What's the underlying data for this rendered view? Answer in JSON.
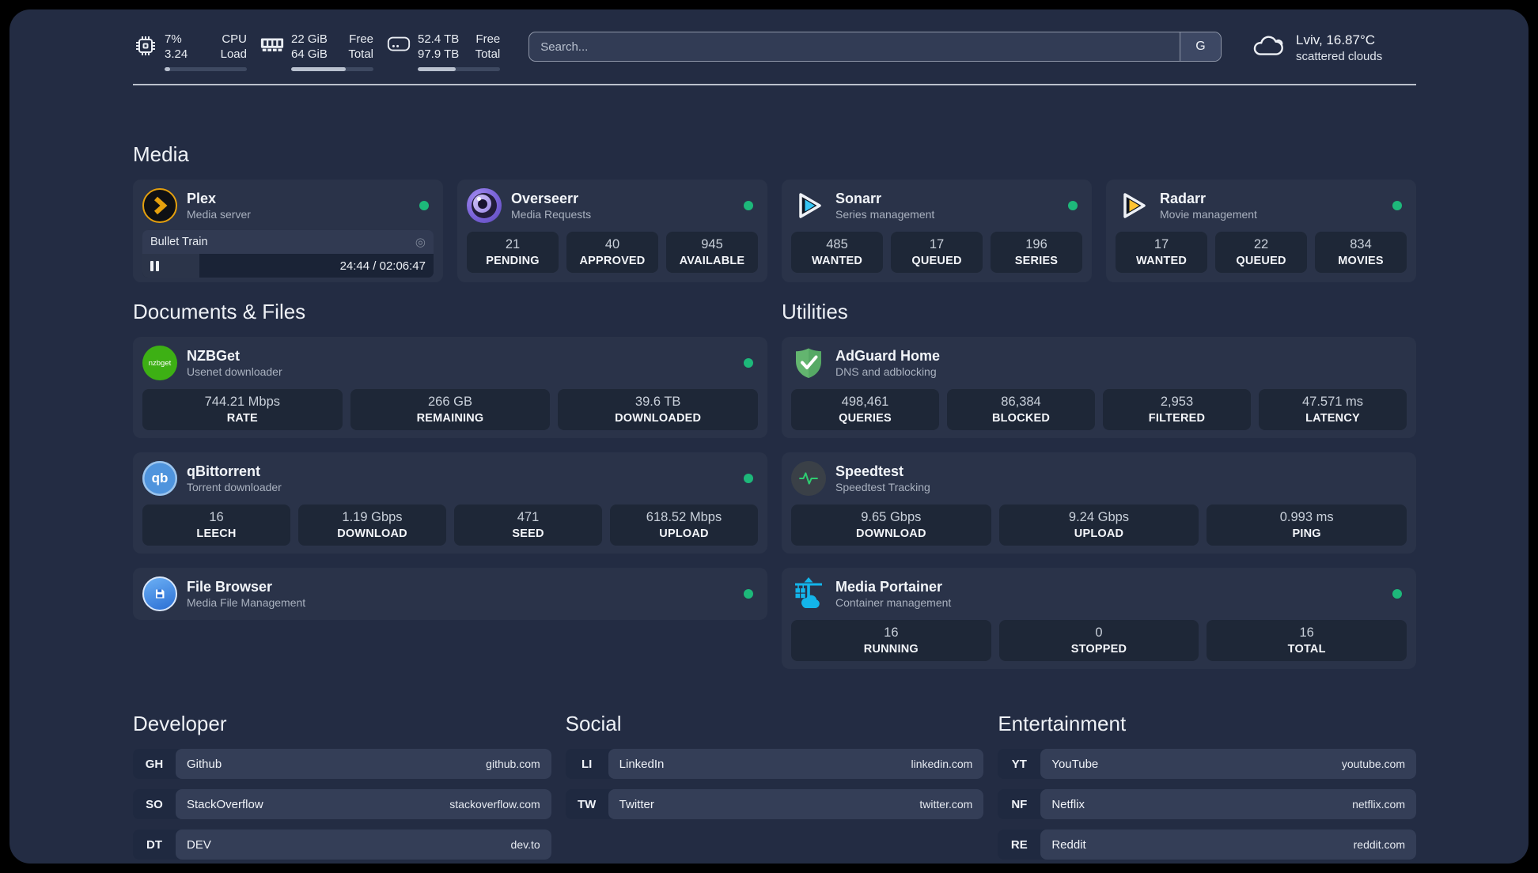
{
  "colors": {
    "panel": "#232c43",
    "card": "#2a3349",
    "tile": "#1e2737",
    "tag": "#1f2940",
    "rowbody": "#343e57",
    "online": "#1db87a",
    "divider": "#ccd2dc",
    "plex": "#e5a00d",
    "sonarr": "#35c5f4",
    "radarr": "#ffc230",
    "nzbget": "#3db014",
    "qb": "#4f94dd",
    "filebrowser": "#2f7fe0",
    "adguard": "#63b56f",
    "speedtest": "#2ecc71",
    "portainer": "#13b5ea",
    "searchborder": "#8e96a8"
  },
  "header": {
    "stats": [
      {
        "top_value": "7%",
        "bottom_value": "3.24",
        "top_label": "CPU",
        "bottom_label": "Load",
        "progress": 7
      },
      {
        "top_value": "22 GiB",
        "bottom_value": "64 GiB",
        "top_label": "Free",
        "bottom_label": "Total",
        "progress": 66
      },
      {
        "top_value": "52.4 TB",
        "bottom_value": "97.9 TB",
        "top_label": "Free",
        "bottom_label": "Total",
        "progress": 46
      }
    ],
    "search": {
      "placeholder": "Search...",
      "engine_button": "G"
    },
    "weather": {
      "location": "Lviv, 16.87°C",
      "condition": "scattered clouds"
    }
  },
  "media": {
    "title": "Media",
    "plex": {
      "name": "Plex",
      "desc": "Media server",
      "player": {
        "title": "Bullet Train",
        "time": "24:44 / 02:06:47",
        "progress": 19.5
      }
    },
    "overseerr": {
      "name": "Overseerr",
      "desc": "Media Requests",
      "stats": [
        {
          "value": "21",
          "label": "PENDING"
        },
        {
          "value": "40",
          "label": "APPROVED"
        },
        {
          "value": "945",
          "label": "AVAILABLE"
        }
      ]
    },
    "sonarr": {
      "name": "Sonarr",
      "desc": "Series management",
      "stats": [
        {
          "value": "485",
          "label": "WANTED"
        },
        {
          "value": "17",
          "label": "QUEUED"
        },
        {
          "value": "196",
          "label": "SERIES"
        }
      ]
    },
    "radarr": {
      "name": "Radarr",
      "desc": "Movie management",
      "stats": [
        {
          "value": "17",
          "label": "WANTED"
        },
        {
          "value": "22",
          "label": "QUEUED"
        },
        {
          "value": "834",
          "label": "MOVIES"
        }
      ]
    }
  },
  "documents": {
    "title": "Documents & Files",
    "nzbget": {
      "name": "NZBGet",
      "desc": "Usenet downloader",
      "icon_text": "nzbget",
      "stats": [
        {
          "value": "744.21 Mbps",
          "label": "RATE"
        },
        {
          "value": "266 GB",
          "label": "REMAINING"
        },
        {
          "value": "39.6 TB",
          "label": "DOWNLOADED"
        }
      ]
    },
    "qbittorrent": {
      "name": "qBittorrent",
      "desc": "Torrent downloader",
      "icon_text": "qb",
      "stats": [
        {
          "value": "16",
          "label": "LEECH"
        },
        {
          "value": "1.19 Gbps",
          "label": "DOWNLOAD"
        },
        {
          "value": "471",
          "label": "SEED"
        },
        {
          "value": "618.52 Mbps",
          "label": "UPLOAD"
        }
      ]
    },
    "filebrowser": {
      "name": "File Browser",
      "desc": "Media File Management"
    }
  },
  "utilities": {
    "title": "Utilities",
    "adguard": {
      "name": "AdGuard Home",
      "desc": "DNS and adblocking",
      "stats": [
        {
          "value": "498,461",
          "label": "QUERIES"
        },
        {
          "value": "86,384",
          "label": "BLOCKED"
        },
        {
          "value": "2,953",
          "label": "FILTERED"
        },
        {
          "value": "47.571 ms",
          "label": "LATENCY"
        }
      ]
    },
    "speedtest": {
      "name": "Speedtest",
      "desc": "Speedtest Tracking",
      "stats": [
        {
          "value": "9.65 Gbps",
          "label": "DOWNLOAD"
        },
        {
          "value": "9.24 Gbps",
          "label": "UPLOAD"
        },
        {
          "value": "0.993 ms",
          "label": "PING"
        }
      ]
    },
    "portainer": {
      "name": "Media Portainer",
      "desc": "Container management",
      "stats": [
        {
          "value": "16",
          "label": "RUNNING"
        },
        {
          "value": "0",
          "label": "STOPPED"
        },
        {
          "value": "16",
          "label": "TOTAL"
        }
      ]
    }
  },
  "bookmarks": [
    {
      "title": "Developer",
      "items": [
        {
          "abbr": "GH",
          "name": "Github",
          "url": "github.com"
        },
        {
          "abbr": "SO",
          "name": "StackOverflow",
          "url": "stackoverflow.com"
        },
        {
          "abbr": "DT",
          "name": "DEV",
          "url": "dev.to"
        }
      ]
    },
    {
      "title": "Social",
      "items": [
        {
          "abbr": "LI",
          "name": "LinkedIn",
          "url": "linkedin.com"
        },
        {
          "abbr": "TW",
          "name": "Twitter",
          "url": "twitter.com"
        }
      ]
    },
    {
      "title": "Entertainment",
      "items": [
        {
          "abbr": "YT",
          "name": "YouTube",
          "url": "youtube.com"
        },
        {
          "abbr": "NF",
          "name": "Netflix",
          "url": "netflix.com"
        },
        {
          "abbr": "RE",
          "name": "Reddit",
          "url": "reddit.com"
        }
      ]
    }
  ]
}
